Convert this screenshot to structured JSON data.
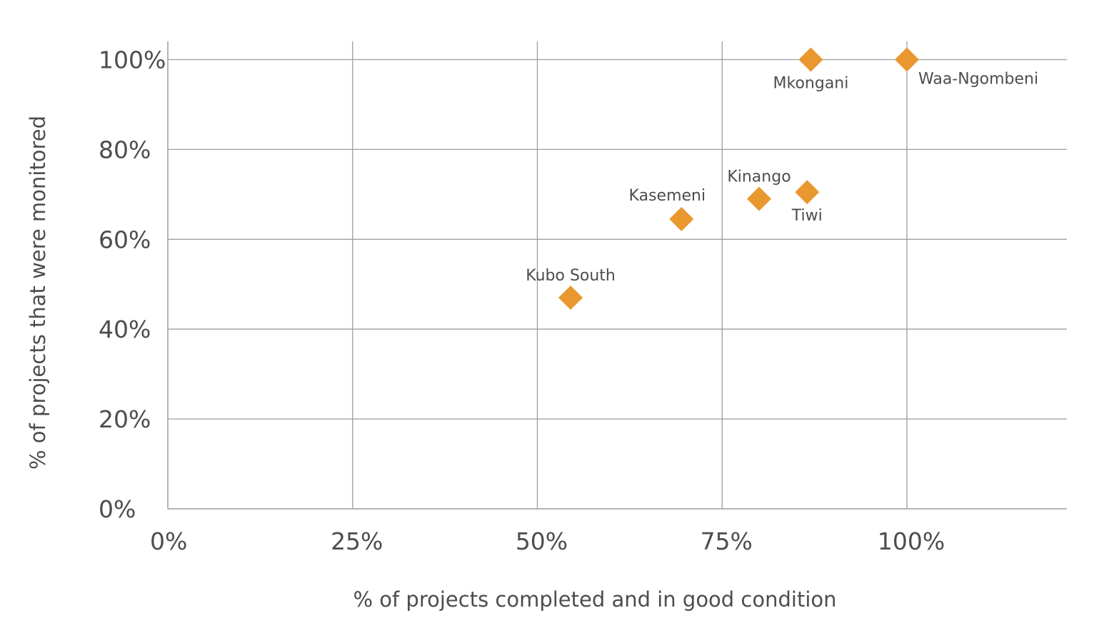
{
  "chart_data": {
    "type": "scatter",
    "title": "",
    "xlabel": "% of projects completed and in good condition",
    "ylabel": "% of projects that were monitored",
    "xlim": [
      0,
      1.22
    ],
    "ylim": [
      0,
      1.04
    ],
    "x_ticks": [
      0,
      0.25,
      0.5,
      0.75,
      1.0
    ],
    "x_tick_labels": [
      "0%",
      "25%",
      "50%",
      "75%",
      "100%"
    ],
    "y_ticks": [
      0,
      0.2,
      0.4,
      0.6,
      0.8,
      1.0
    ],
    "y_tick_labels": [
      "0%",
      "20%",
      "40%",
      "60%",
      "80%",
      "100%"
    ],
    "grid": true,
    "legend": "none",
    "marker": "diamond",
    "marker_color": "#e8982f",
    "grid_color": "#9e9e9e",
    "text_color": "#4d4d4d",
    "points": [
      {
        "label": "Mkongani",
        "x": 0.87,
        "y": 1.0,
        "label_position": "below"
      },
      {
        "label": "Waa-Ngombeni",
        "x": 1.0,
        "y": 1.0,
        "label_position": "below-right"
      },
      {
        "label": "Kinango",
        "x": 0.8,
        "y": 0.69,
        "label_position": "above"
      },
      {
        "label": "Tiwi",
        "x": 0.865,
        "y": 0.705,
        "label_position": "below"
      },
      {
        "label": "Kasemeni",
        "x": 0.695,
        "y": 0.645,
        "label_position": "above-left"
      },
      {
        "label": "Kubo South",
        "x": 0.545,
        "y": 0.47,
        "label_position": "above"
      }
    ]
  }
}
